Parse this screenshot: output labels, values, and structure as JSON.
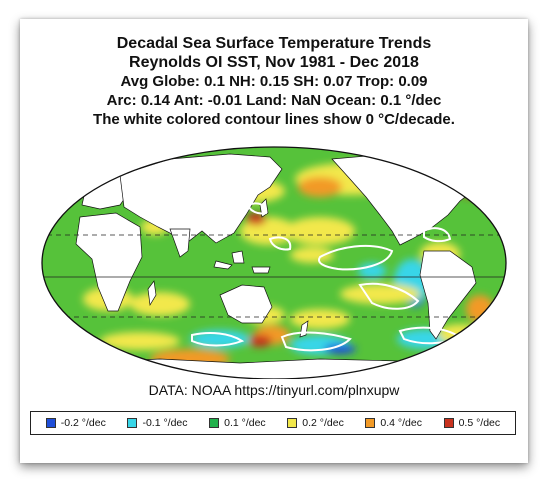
{
  "title": {
    "line1": "Decadal Sea Surface Temperature Trends",
    "line2": "Reynolds OI SST, Nov 1981 - Dec 2018",
    "line3": "Avg Globe: 0.1  NH: 0.15  SH: 0.07  Trop: 0.09",
    "line4": "Arc: 0.14  Ant: -0.01  Land: NaN Ocean: 0.1 °/dec",
    "line5": "The white colored contour lines show 0 °C/decade."
  },
  "source": "DATA: NOAA https://tinyurl.com/plnxupw",
  "legend": [
    {
      "label": "-0.2 °/dec",
      "color": "#1f4ed8"
    },
    {
      "label": "-0.1 °/dec",
      "color": "#38d6e8"
    },
    {
      "label": "0.1 °/dec",
      "color": "#22b14c"
    },
    {
      "label": "0.2 °/dec",
      "color": "#f2e84b"
    },
    {
      "label": "0.4 °/dec",
      "color": "#f29a26"
    },
    {
      "label": "0.5 °/dec",
      "color": "#c8321e"
    }
  ],
  "map": {
    "projection": "mollweide",
    "ocean_base_color": "#56c23a",
    "land_color": "#ffffff",
    "zero_contour_color": "#ffffff"
  }
}
